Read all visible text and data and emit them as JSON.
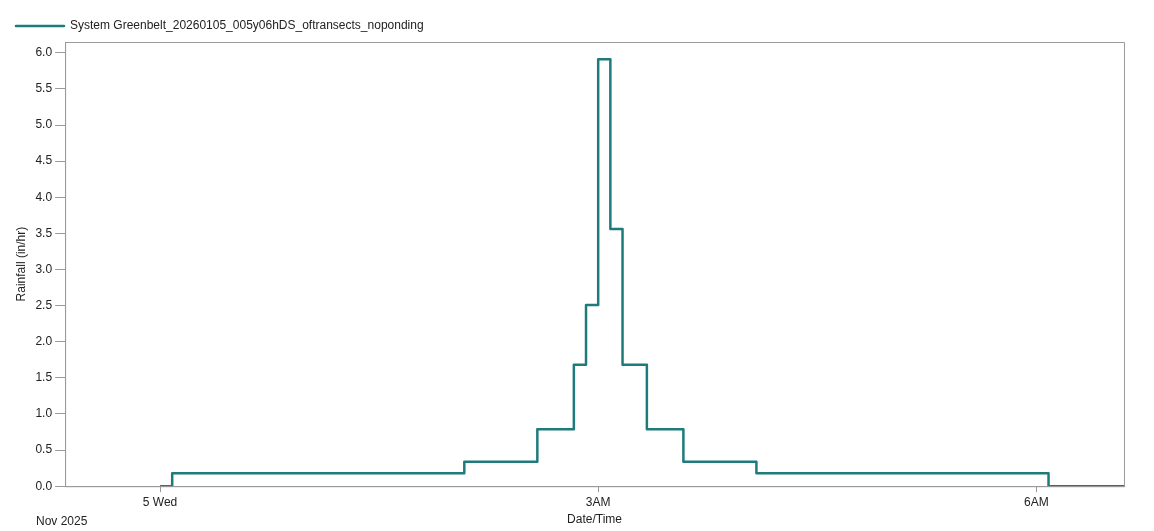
{
  "chart_data": {
    "type": "step",
    "xlabel": "Date/Time",
    "ylabel": "Rainfall (in/hr)",
    "x": [
      "2025-11-05T00:00",
      "2025-11-05T00:05",
      "2025-11-05T02:05",
      "2025-11-05T02:35",
      "2025-11-05T02:50",
      "2025-11-05T02:55",
      "2025-11-05T03:00",
      "2025-11-05T03:05",
      "2025-11-05T03:10",
      "2025-11-05T03:20",
      "2025-11-05T03:35",
      "2025-11-05T04:05",
      "2025-11-05T06:05",
      "2025-11-05T06:36"
    ],
    "series": [
      {
        "name": "System Greenbelt_20260105_005y06hDS_oftransects_noponding",
        "color": "#1f7b7b",
        "values": [
          0,
          0.18,
          0.34,
          0.79,
          1.68,
          2.51,
          5.91,
          3.56,
          1.68,
          0.79,
          0.34,
          0.18,
          0,
          0
        ]
      }
    ],
    "xlim": [
      "2025-11-04T23:21",
      "2025-11-05T06:36"
    ],
    "xticks": [
      {
        "value": "2025-11-05T00:00",
        "label": "5 Wed"
      },
      {
        "value": "2025-11-05T03:00",
        "label": "3AM"
      },
      {
        "value": "2025-11-05T06:00",
        "label": "6AM"
      }
    ],
    "ylim": [
      0,
      6.15
    ],
    "yticks": [
      {
        "value": 0,
        "label": "0.0"
      },
      {
        "value": 0.5,
        "label": "0.5"
      },
      {
        "value": 1,
        "label": "1.0"
      },
      {
        "value": 1.5,
        "label": "1.5"
      },
      {
        "value": 2,
        "label": "2.0"
      },
      {
        "value": 2.5,
        "label": "2.5"
      },
      {
        "value": 3,
        "label": "3.0"
      },
      {
        "value": 3.5,
        "label": "3.5"
      },
      {
        "value": 4,
        "label": "4.0"
      },
      {
        "value": 4.5,
        "label": "4.5"
      },
      {
        "value": 5,
        "label": "5.0"
      },
      {
        "value": 5.5,
        "label": "5.5"
      },
      {
        "value": 6,
        "label": "6.0"
      }
    ],
    "annotations": [
      "Nov 2025"
    ],
    "grid": false,
    "legend": "top left",
    "marker": "none",
    "line_style": "solid"
  }
}
